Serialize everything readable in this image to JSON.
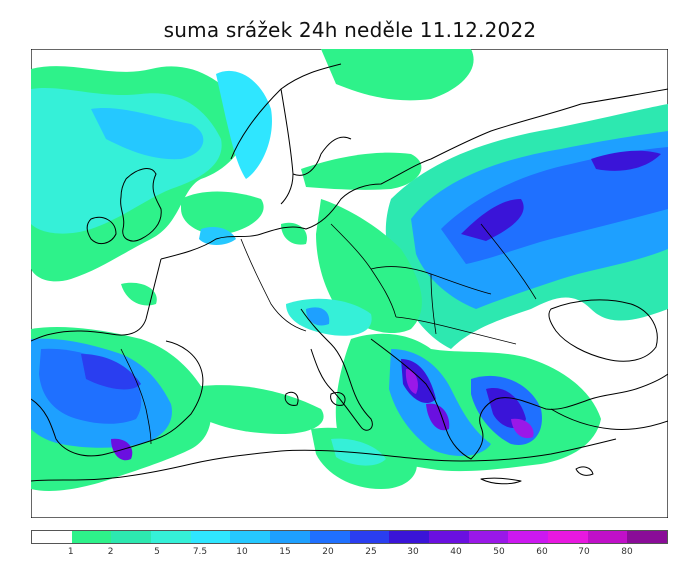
{
  "title": "suma srážek 24h  neděle 11.12.2022",
  "legend": {
    "colors": [
      "#ffffff",
      "#2ef28a",
      "#2de8b0",
      "#35f0d8",
      "#2fe6ff",
      "#25c8ff",
      "#1ea0ff",
      "#1f70ff",
      "#2a3ef0",
      "#3a14d8",
      "#6a10e0",
      "#9a18e8",
      "#cc18f0",
      "#e818e0",
      "#c010c8",
      "#8a0c98"
    ],
    "ticks": [
      "1",
      "2",
      "5",
      "7.5",
      "10",
      "15",
      "20",
      "25",
      "30",
      "40",
      "50",
      "60",
      "70",
      "80"
    ]
  }
}
